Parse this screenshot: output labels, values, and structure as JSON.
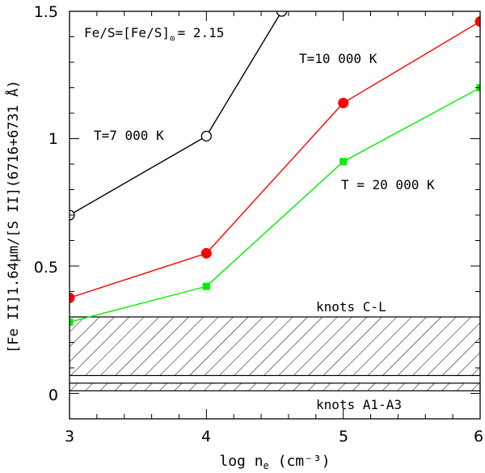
{
  "chart_data": {
    "type": "line",
    "title": "",
    "xlabel": "log n",
    "xlabel_sub": "e",
    "xlabel_units": " (cm⁻³)",
    "ylabel": "[Fe II]1.64μm/[S II](6716+6731 Å)",
    "xlim": [
      3,
      6
    ],
    "ylim": [
      -0.1,
      1.5
    ],
    "xticks": [
      "3",
      "4",
      "5",
      "6"
    ],
    "yticks": [
      "0",
      "0.5",
      "1",
      "1.5"
    ],
    "grid": false,
    "series": [
      {
        "name": "T=7 000 K",
        "color": "#000000",
        "marker": "open-circle",
        "x": [
          3,
          4,
          4.55
        ],
        "y": [
          0.7,
          1.01,
          1.5
        ]
      },
      {
        "name": "T=10 000 K",
        "color": "#ff0000",
        "marker": "filled-circle",
        "x": [
          3,
          4,
          5,
          6
        ],
        "y": [
          0.375,
          0.55,
          1.14,
          1.46
        ]
      },
      {
        "name": "T = 20 000 K",
        "color": "#00ee00",
        "marker": "filled-square",
        "x": [
          3,
          4,
          5,
          6
        ],
        "y": [
          0.28,
          0.42,
          0.91,
          1.2
        ]
      }
    ],
    "bands": [
      {
        "name": "knots C-L",
        "ymin": 0.07,
        "ymax": 0.3
      },
      {
        "name": "knots A1-A3",
        "ymin": 0.01,
        "ymax": 0.04
      }
    ],
    "annotations": {
      "fe_s": "Fe/S=[Fe/S]",
      "fe_s_sub": "⊙",
      "fe_s_val": "= 2.15",
      "t7000": "T=7 000 K",
      "t10000": "T=10 000 K",
      "t20000": "T = 20 000 K",
      "knots_cl": "knots C-L",
      "knots_a1a3": "knots A1-A3"
    }
  }
}
